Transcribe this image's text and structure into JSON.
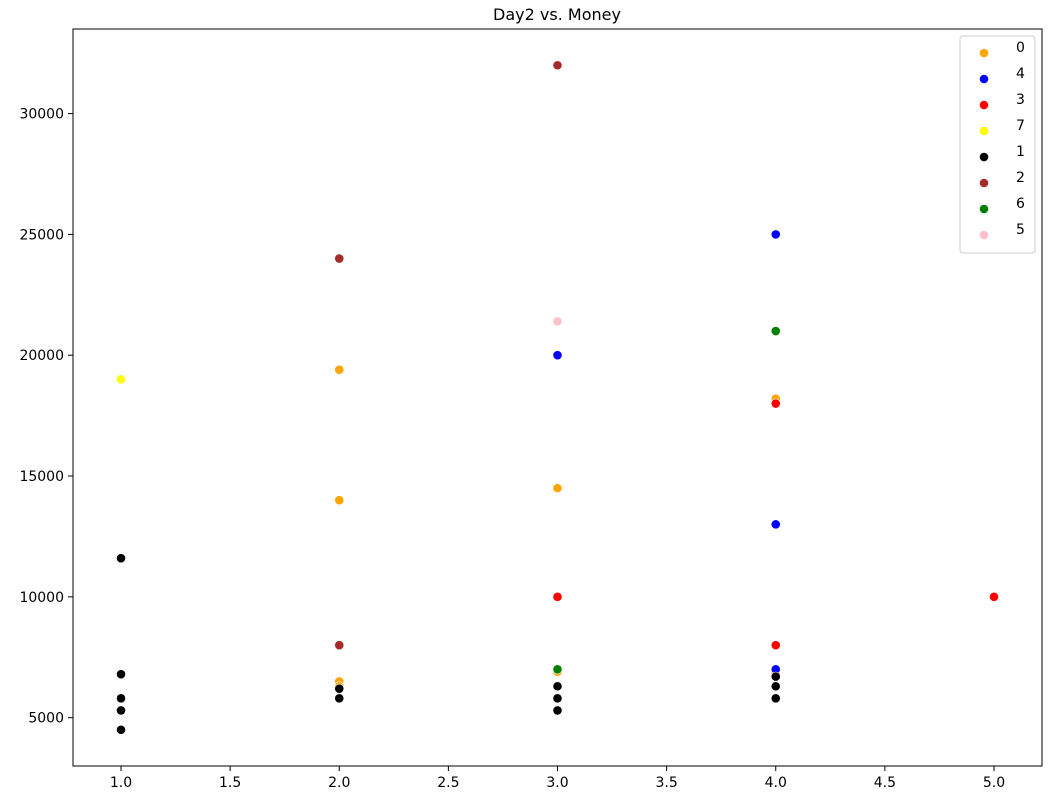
{
  "chart_data": {
    "type": "scatter",
    "title": "Day2 vs. Money",
    "xlabel": "",
    "ylabel": "",
    "xlim": [
      0.78,
      5.22
    ],
    "ylim": [
      3000,
      33500
    ],
    "xticks": [
      "1.0",
      "1.5",
      "2.0",
      "2.5",
      "3.0",
      "3.5",
      "4.0",
      "4.5",
      "5.0"
    ],
    "yticks": [
      "5000",
      "10000",
      "15000",
      "20000",
      "25000",
      "30000"
    ],
    "grid": false,
    "legend_position": "top-right",
    "series": [
      {
        "name": "0",
        "color": "#ffa500",
        "points": [
          [
            2,
            19400
          ],
          [
            2,
            14000
          ],
          [
            2,
            6500
          ],
          [
            2,
            6300
          ],
          [
            3,
            14500
          ],
          [
            3,
            6900
          ],
          [
            4,
            18200
          ],
          [
            4,
            6800
          ]
        ]
      },
      {
        "name": "4",
        "color": "#0000ff",
        "points": [
          [
            3,
            20000
          ],
          [
            4,
            25000
          ],
          [
            4,
            13000
          ],
          [
            4,
            7000
          ]
        ]
      },
      {
        "name": "3",
        "color": "#ff0000",
        "points": [
          [
            3,
            10000
          ],
          [
            4,
            18000
          ],
          [
            4,
            8000
          ],
          [
            5,
            10000
          ]
        ]
      },
      {
        "name": "7",
        "color": "#ffff00",
        "points": [
          [
            1,
            19000
          ]
        ]
      },
      {
        "name": "1",
        "color": "#000000",
        "points": [
          [
            1,
            11600
          ],
          [
            1,
            6800
          ],
          [
            1,
            5800
          ],
          [
            1,
            5300
          ],
          [
            1,
            4500
          ],
          [
            2,
            6200
          ],
          [
            2,
            5800
          ],
          [
            3,
            6300
          ],
          [
            3,
            5800
          ],
          [
            3,
            5300
          ],
          [
            4,
            6700
          ],
          [
            4,
            6300
          ],
          [
            4,
            5800
          ]
        ]
      },
      {
        "name": "2",
        "color": "#a52a2a",
        "points": [
          [
            2,
            24000
          ],
          [
            2,
            8000
          ],
          [
            3,
            32000
          ]
        ]
      },
      {
        "name": "6",
        "color": "#008000",
        "points": [
          [
            3,
            7000
          ],
          [
            4,
            21000
          ]
        ]
      },
      {
        "name": "5",
        "color": "#ffc0cb",
        "points": [
          [
            3,
            21400
          ]
        ]
      }
    ]
  }
}
